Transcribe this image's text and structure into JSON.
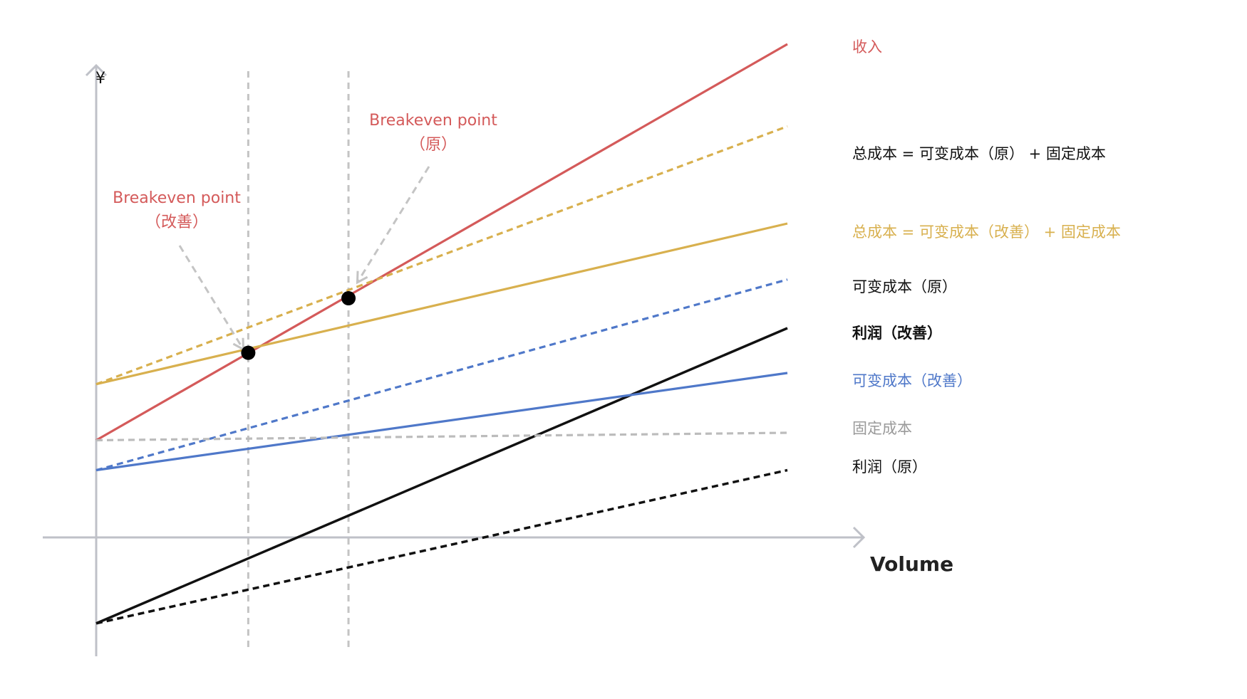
{
  "colors": {
    "revenue": "#d45a5a",
    "total_cost": "#d8b04e",
    "variable_cost": "#4f78c9",
    "fixed_cost": "#bcbcbc",
    "profit": "#111111",
    "axis": "#bfc1c8",
    "guide": "#c4c4c4",
    "point": "#000000"
  },
  "chart_data": {
    "type": "line",
    "title": "",
    "xlabel": "Volume",
    "ylabel": "¥",
    "x": [
      0,
      100
    ],
    "grid": false,
    "legend": "right",
    "series": [
      {
        "name": "收入",
        "key": "revenue",
        "values": [
          13,
          66
        ],
        "style": "solid",
        "color": "#d45a5a"
      },
      {
        "name": "总成本 = 可变成本（原） + 固定成本",
        "key": "total_cost_orig",
        "values": [
          20.5,
          55
        ],
        "style": "dashed",
        "color": "#d8b04e"
      },
      {
        "name": "总成本 = 可变成本（改善） + 固定成本",
        "key": "total_cost_improved",
        "values": [
          20.5,
          42
        ],
        "style": "solid",
        "color": "#d8b04e"
      },
      {
        "name": "可变成本（原）",
        "key": "var_cost_orig",
        "values": [
          9,
          34.5
        ],
        "style": "dashed",
        "color": "#4f78c9"
      },
      {
        "name": "利润（改善）",
        "key": "profit_improved",
        "values": [
          -11.5,
          28
        ],
        "style": "solid",
        "color": "#111111",
        "bold": true
      },
      {
        "name": "可变成本（改善）",
        "key": "var_cost_improved",
        "values": [
          9,
          22
        ],
        "style": "solid",
        "color": "#4f78c9"
      },
      {
        "name": "固定成本",
        "key": "fixed_cost",
        "values": [
          13,
          14
        ],
        "style": "dashed",
        "color": "#bcbcbc"
      },
      {
        "name": "利润（原）",
        "key": "profit_orig",
        "values": [
          -11.5,
          9
        ],
        "style": "dashed",
        "color": "#111111"
      }
    ],
    "breakeven_points": [
      {
        "label": "Breakeven point",
        "sub": "（改善）",
        "x": 22,
        "y": 24.7
      },
      {
        "label": "Breakeven point",
        "sub": "（原）",
        "x": 36.5,
        "y": 32
      }
    ]
  }
}
